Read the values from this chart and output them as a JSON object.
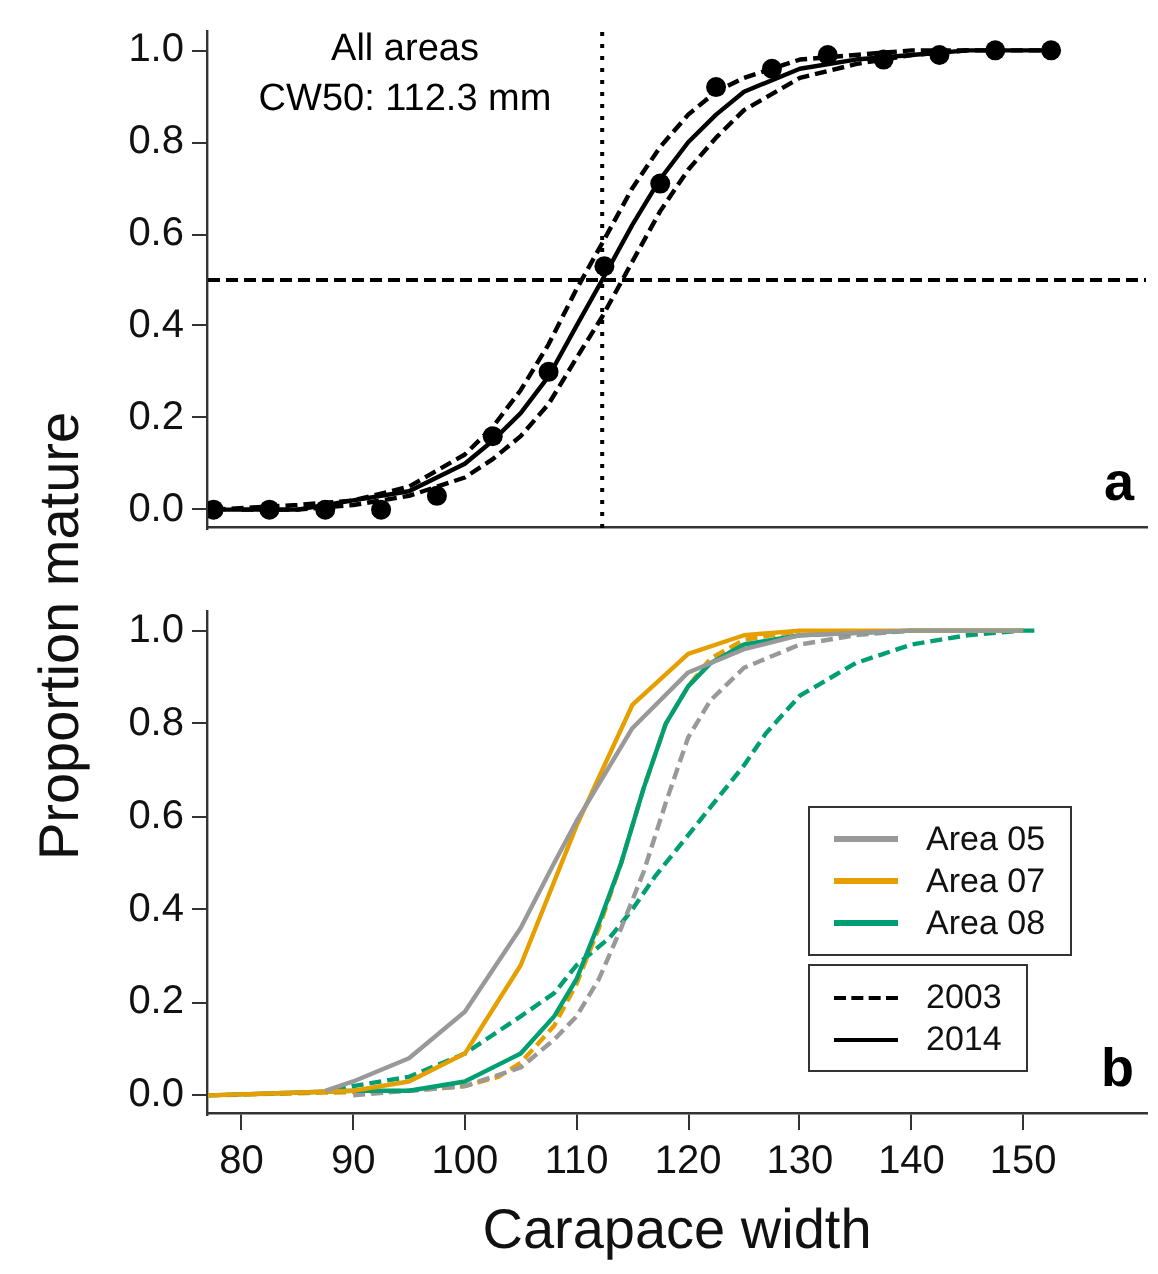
{
  "chart_data": [
    {
      "type": "line",
      "ylabel": "Proportion mature",
      "xlim": [
        77,
        161
      ],
      "ylim": [
        -0.04,
        1.04
      ],
      "yticks": [
        {
          "value": 0,
          "label": "0.0"
        },
        {
          "value": 0.2,
          "label": "0.2"
        },
        {
          "value": 0.4,
          "label": "0.4"
        },
        {
          "value": 0.6,
          "label": "0.6"
        },
        {
          "value": 0.8,
          "label": "0.8"
        },
        {
          "value": 1,
          "label": "1.0"
        }
      ],
      "tick_labels": "y",
      "annotations": [
        "All areas",
        "CW50: 112.3 mm",
        "a"
      ],
      "ref_lines": [
        {
          "axis": "y",
          "value": 0.5,
          "color": "#000000",
          "line_style": "dashed"
        },
        {
          "axis": "x",
          "value": 112.3,
          "color": "#000000",
          "line_style": "dotted"
        }
      ],
      "series": [
        {
          "type": "scatter",
          "marker": "circle",
          "color": "#000000",
          "x": [
            77.5,
            82.5,
            87.5,
            92.5,
            97.5,
            102.5,
            107.5,
            112.5,
            117.5,
            122.5,
            127.5,
            132.5,
            137.5,
            142.5,
            147.5,
            152.5
          ],
          "values": [
            0,
            0,
            0,
            0,
            0.03,
            0.16,
            0.3,
            0.53,
            0.71,
            0.92,
            0.96,
            0.99,
            0.98,
            0.99,
            1,
            1
          ]
        },
        {
          "type": "line",
          "line_style": "solid",
          "color": "#000000",
          "x": [
            77.5,
            85,
            90,
            95,
            100,
            102.5,
            105,
            107.5,
            110,
            112.3,
            115,
            117.5,
            120,
            122.5,
            125,
            130,
            135,
            140,
            145,
            152.5
          ],
          "values": [
            0,
            0,
            0.02,
            0.04,
            0.1,
            0.15,
            0.21,
            0.29,
            0.4,
            0.5,
            0.62,
            0.72,
            0.8,
            0.86,
            0.91,
            0.96,
            0.98,
            0.99,
            1,
            1
          ]
        },
        {
          "type": "line",
          "line_style": "dashed",
          "color": "#000000",
          "x": [
            77.5,
            85,
            90,
            95,
            100,
            102.5,
            105,
            107.5,
            110,
            112.3,
            115,
            117.5,
            120,
            122.5,
            125,
            130,
            135,
            140,
            145
          ],
          "values": [
            0,
            0.01,
            0.02,
            0.05,
            0.12,
            0.18,
            0.26,
            0.36,
            0.48,
            0.58,
            0.7,
            0.79,
            0.86,
            0.91,
            0.94,
            0.98,
            0.99,
            1,
            1
          ]
        },
        {
          "type": "line",
          "line_style": "dashed",
          "color": "#000000",
          "x": [
            80,
            85,
            90,
            95,
            100,
            102.5,
            105,
            107.5,
            110,
            112.3,
            115,
            117.5,
            120,
            122.5,
            125,
            130,
            135,
            140,
            145,
            152.5
          ],
          "values": [
            0,
            0,
            0.01,
            0.03,
            0.07,
            0.11,
            0.16,
            0.23,
            0.33,
            0.42,
            0.54,
            0.65,
            0.74,
            0.81,
            0.87,
            0.94,
            0.97,
            0.99,
            1,
            1
          ]
        }
      ]
    },
    {
      "type": "line",
      "xlabel": "Carapace width",
      "xlim": [
        77,
        161
      ],
      "xticks": [
        80,
        90,
        100,
        110,
        120,
        130,
        140,
        150
      ],
      "ylim": [
        -0.04,
        1.04
      ],
      "yticks": [
        {
          "value": 0,
          "label": "0.0"
        },
        {
          "value": 0.2,
          "label": "0.2"
        },
        {
          "value": 0.4,
          "label": "0.4"
        },
        {
          "value": 0.6,
          "label": "0.6"
        },
        {
          "value": 0.8,
          "label": "0.8"
        },
        {
          "value": 1,
          "label": "1.0"
        }
      ],
      "legend": "bottom right",
      "annotations": [
        "b"
      ],
      "series": [
        {
          "name": "Area 05",
          "line_style": "solid",
          "color": "#999999",
          "x": [
            87.5,
            90,
            95,
            100,
            105,
            108,
            110,
            115,
            120,
            125,
            130,
            140,
            150
          ],
          "values": [
            0.01,
            0.03,
            0.08,
            0.18,
            0.36,
            0.5,
            0.59,
            0.79,
            0.91,
            0.96,
            0.99,
            1,
            1
          ]
        },
        {
          "name": "Area 07",
          "line_style": "solid",
          "color": "#e69f00",
          "x": [
            77,
            90,
            95,
            100,
            105,
            110,
            115,
            120,
            125,
            130,
            140,
            150
          ],
          "values": [
            0,
            0.01,
            0.03,
            0.09,
            0.28,
            0.58,
            0.84,
            0.95,
            0.99,
            1,
            1,
            1
          ]
        },
        {
          "name": "Area 08",
          "line_style": "solid",
          "color": "#009e73",
          "x": [
            77,
            90,
            95,
            100,
            105,
            108,
            110,
            112,
            114,
            116,
            118,
            120,
            122,
            125,
            130,
            140,
            151
          ],
          "values": [
            0,
            0.01,
            0.01,
            0.03,
            0.09,
            0.17,
            0.25,
            0.37,
            0.5,
            0.66,
            0.8,
            0.88,
            0.93,
            0.97,
            0.99,
            1,
            1
          ]
        },
        {
          "line_style": "dashed",
          "color": "#999999",
          "x": [
            90,
            100,
            105,
            108,
            110,
            112,
            114,
            116,
            118,
            120,
            122,
            125,
            130,
            135,
            140
          ],
          "values": [
            0,
            0.02,
            0.06,
            0.12,
            0.17,
            0.25,
            0.36,
            0.48,
            0.63,
            0.77,
            0.85,
            0.92,
            0.97,
            0.99,
            1
          ]
        },
        {
          "line_style": "dashed",
          "color": "#e69f00",
          "x": [
            77,
            95,
            100,
            103,
            105,
            108,
            110,
            112,
            114,
            116,
            118,
            120,
            122,
            125,
            130
          ],
          "values": [
            0,
            0.01,
            0.02,
            0.04,
            0.07,
            0.15,
            0.24,
            0.36,
            0.5,
            0.66,
            0.8,
            0.88,
            0.94,
            0.98,
            1
          ]
        },
        {
          "line_style": "dashed",
          "color": "#009e73",
          "x": [
            88.3,
            90,
            95,
            100,
            105,
            108,
            110,
            113,
            115,
            117,
            120,
            122,
            125,
            127,
            130,
            135,
            140,
            145,
            150
          ],
          "values": [
            0.01,
            0.02,
            0.04,
            0.09,
            0.17,
            0.22,
            0.28,
            0.34,
            0.4,
            0.47,
            0.56,
            0.62,
            0.71,
            0.78,
            0.86,
            0.93,
            0.97,
            0.99,
            1
          ]
        },
        {
          "name": "2003",
          "line_style": "dashed",
          "color": "#000000"
        },
        {
          "name": "2014",
          "line_style": "solid",
          "color": "#000000"
        }
      ]
    }
  ]
}
